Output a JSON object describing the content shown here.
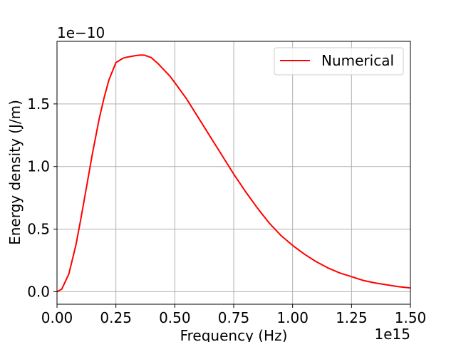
{
  "chart_data": {
    "type": "line",
    "title": "",
    "xlabel": "Frequency (Hz)",
    "ylabel": "Energy density (J/m)",
    "x_offset_text": "1e15",
    "y_offset_text": "1e−10",
    "xlim": [
      0.0,
      1.5
    ],
    "ylim": [
      -0.1,
      2.0
    ],
    "x_ticks": [
      0.0,
      0.25,
      0.5,
      0.75,
      1.0,
      1.25,
      1.5
    ],
    "x_tick_labels": [
      "0.00",
      "0.25",
      "0.50",
      "0.75",
      "1.00",
      "1.25",
      "1.50"
    ],
    "y_ticks": [
      0.0,
      0.5,
      1.0,
      1.5
    ],
    "y_tick_labels": [
      "0.0",
      "0.5",
      "1.0",
      "1.5"
    ],
    "grid": true,
    "legend_position": "top-right",
    "series": [
      {
        "name": "Numerical",
        "color": "#ff0000",
        "x": [
          0.0,
          0.02,
          0.05,
          0.08,
          0.1,
          0.12,
          0.15,
          0.18,
          0.2,
          0.22,
          0.25,
          0.28,
          0.3,
          0.33,
          0.35,
          0.37,
          0.4,
          0.43,
          0.45,
          0.48,
          0.5,
          0.55,
          0.6,
          0.65,
          0.7,
          0.75,
          0.8,
          0.85,
          0.9,
          0.95,
          1.0,
          1.05,
          1.1,
          1.15,
          1.2,
          1.25,
          1.3,
          1.35,
          1.4,
          1.45,
          1.5
        ],
        "values": [
          0.0,
          0.02,
          0.14,
          0.37,
          0.57,
          0.78,
          1.1,
          1.39,
          1.55,
          1.69,
          1.83,
          1.865,
          1.875,
          1.885,
          1.89,
          1.89,
          1.87,
          1.82,
          1.78,
          1.72,
          1.67,
          1.54,
          1.39,
          1.24,
          1.09,
          0.94,
          0.8,
          0.67,
          0.55,
          0.45,
          0.37,
          0.3,
          0.24,
          0.19,
          0.15,
          0.12,
          0.09,
          0.07,
          0.055,
          0.04,
          0.03
        ]
      }
    ]
  }
}
